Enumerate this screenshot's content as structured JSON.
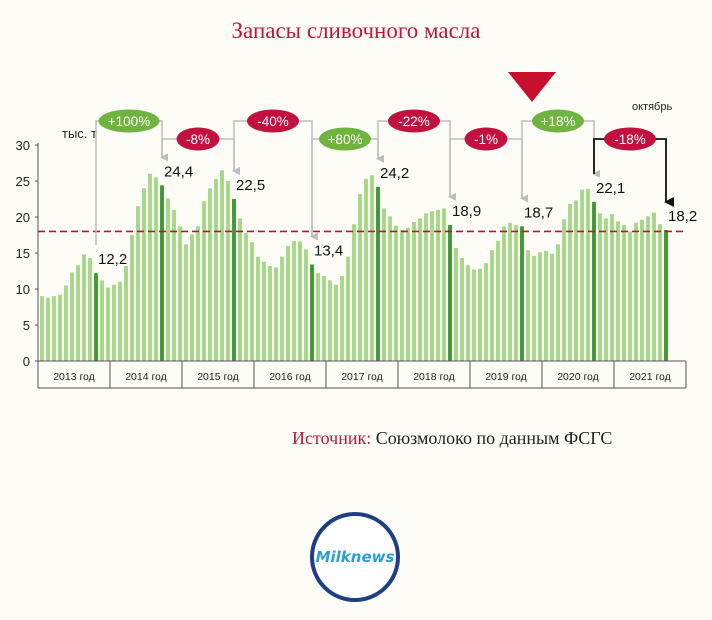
{
  "chart_data": {
    "type": "bar",
    "title": "Запасы сливочного масла",
    "ylabel": "тыс. т",
    "corner_note": "октябрь",
    "ylim": [
      0,
      30
    ],
    "yticks": [
      0,
      5,
      10,
      15,
      20,
      25,
      30
    ],
    "years": [
      "2013 год",
      "2014 год",
      "2015 год",
      "2016 год",
      "2017 год",
      "2018 год",
      "2019 год",
      "2020 год",
      "2021 год"
    ],
    "values": [
      9.0,
      8.8,
      9.0,
      9.2,
      10.5,
      12.3,
      13.3,
      14.8,
      14.3,
      12.2,
      11.2,
      10.2,
      10.6,
      11.0,
      13.2,
      17.5,
      21.5,
      24.0,
      26.0,
      25.5,
      24.4,
      22.6,
      21.0,
      18.7,
      16.2,
      17.6,
      18.7,
      22.2,
      24.0,
      25.3,
      26.5,
      25.0,
      22.5,
      19.8,
      17.8,
      16.5,
      14.5,
      13.8,
      13.2,
      13.0,
      14.5,
      16.0,
      16.7,
      16.6,
      15.5,
      13.4,
      12.2,
      11.8,
      11.2,
      10.6,
      11.8,
      14.5,
      19.0,
      23.2,
      25.3,
      25.8,
      24.2,
      21.2,
      20.1,
      18.8,
      18.2,
      18.5,
      19.3,
      19.8,
      20.5,
      20.8,
      21.0,
      21.2,
      18.9,
      15.7,
      14.3,
      13.3,
      12.7,
      12.8,
      13.6,
      15.4,
      16.7,
      18.7,
      19.2,
      18.9,
      18.7,
      15.4,
      14.6,
      15.1,
      15.3,
      14.9,
      16.2,
      19.7,
      21.8,
      22.3,
      23.8,
      23.9,
      22.1,
      20.5,
      19.8,
      20.4,
      19.4,
      18.9,
      18.0,
      19.2,
      19.6,
      20.1,
      20.6,
      19.0,
      18.2
    ],
    "highlighted": [
      9,
      20,
      32,
      45,
      56,
      68,
      80,
      92,
      104
    ],
    "value_labels": [
      {
        "index": 9,
        "text": "12,2"
      },
      {
        "index": 20,
        "text": "24,4"
      },
      {
        "index": 32,
        "text": "22,5"
      },
      {
        "index": 45,
        "text": "13,4"
      },
      {
        "index": 56,
        "text": "24,2"
      },
      {
        "index": 68,
        "text": "18,9"
      },
      {
        "index": 80,
        "text": "18,7"
      },
      {
        "index": 92,
        "text": "22,1"
      },
      {
        "index": 104,
        "text": "18,2"
      }
    ],
    "changes": [
      {
        "from": 9,
        "to": 20,
        "text": "+100%",
        "color": "#6fb43f",
        "highlight": false
      },
      {
        "from": 20,
        "to": 32,
        "text": "-8%",
        "color": "#c2103f",
        "highlight": false
      },
      {
        "from": 32,
        "to": 45,
        "text": "-40%",
        "color": "#c2103f",
        "highlight": false
      },
      {
        "from": 45,
        "to": 56,
        "text": "+80%",
        "color": "#6fb43f",
        "highlight": false
      },
      {
        "from": 56,
        "to": 68,
        "text": "-22%",
        "color": "#c2103f",
        "highlight": false
      },
      {
        "from": 68,
        "to": 80,
        "text": "-1%",
        "color": "#c2103f",
        "highlight": false
      },
      {
        "from": 80,
        "to": 92,
        "text": "+18%",
        "color": "#6fb43f",
        "highlight": false
      },
      {
        "from": 92,
        "to": 104,
        "text": "-18%",
        "color": "#c2103f",
        "highlight": true
      }
    ],
    "reference_line": {
      "value": 18,
      "color": "#c8102e",
      "style": "dashed"
    },
    "grid": false,
    "colors": {
      "bar": "#a6d88a",
      "bar_highlight": "#3f9a31",
      "axis": "#555555"
    }
  },
  "source": {
    "label": "Источник:",
    "text": " Союзмолоко по данным ФСГС"
  },
  "logo": {
    "text": "Milknews"
  }
}
